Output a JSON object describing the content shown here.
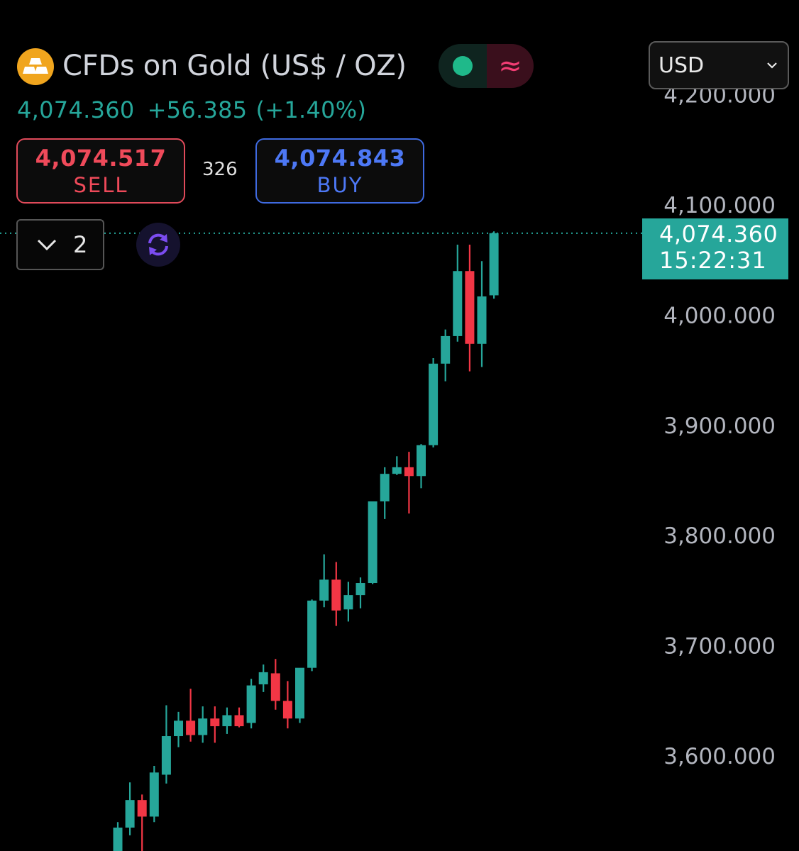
{
  "header": {
    "title": "CFDs on Gold (US$ / OZ)",
    "status_icon": "live-dot-icon",
    "wave_symbol": "≈"
  },
  "quote": {
    "last": "4,074.360",
    "change": "+56.385",
    "change_pct": "(+1.40%)"
  },
  "trade": {
    "sell_price": "4,074.517",
    "sell_label": "SELL",
    "spread": "326",
    "buy_price": "4,074.843",
    "buy_label": "BUY"
  },
  "controls": {
    "collapse_count": "2",
    "currency": "USD"
  },
  "last_price_label": {
    "price": "4,074.360",
    "countdown": "15:22:31"
  },
  "colors": {
    "up": "#26a69a",
    "down": "#f23645",
    "sell": "#ef4a5a",
    "buy": "#4d78f5",
    "axis_text": "#b2b5be"
  },
  "chart_data": {
    "type": "candlestick",
    "y_ticks": [
      "3,600.000",
      "3,700.000",
      "3,800.000",
      "3,900.000",
      "4,000.000",
      "4,100.000",
      "4,200.000"
    ],
    "y_tick_values": [
      3600,
      3700,
      3800,
      3900,
      4000,
      4100,
      4200
    ],
    "ylim": [
      3515,
      4230
    ],
    "last_price": 4074.36,
    "grid": false,
    "candles": [
      {
        "o": 3508,
        "h": 3540,
        "l": 3500,
        "c": 3535
      },
      {
        "o": 3535,
        "h": 3576,
        "l": 3528,
        "c": 3560
      },
      {
        "o": 3560,
        "h": 3565,
        "l": 3505,
        "c": 3545
      },
      {
        "o": 3545,
        "h": 3591,
        "l": 3540,
        "c": 3585
      },
      {
        "o": 3583,
        "h": 3646,
        "l": 3575,
        "c": 3618
      },
      {
        "o": 3618,
        "h": 3640,
        "l": 3608,
        "c": 3632
      },
      {
        "o": 3632,
        "h": 3661,
        "l": 3613,
        "c": 3619
      },
      {
        "o": 3619,
        "h": 3645,
        "l": 3612,
        "c": 3634
      },
      {
        "o": 3634,
        "h": 3645,
        "l": 3612,
        "c": 3627
      },
      {
        "o": 3627,
        "h": 3644,
        "l": 3620,
        "c": 3637
      },
      {
        "o": 3637,
        "h": 3644,
        "l": 3626,
        "c": 3627
      },
      {
        "o": 3630,
        "h": 3670,
        "l": 3625,
        "c": 3664
      },
      {
        "o": 3665,
        "h": 3683,
        "l": 3658,
        "c": 3676
      },
      {
        "o": 3675,
        "h": 3688,
        "l": 3642,
        "c": 3650
      },
      {
        "o": 3650,
        "h": 3668,
        "l": 3625,
        "c": 3634
      },
      {
        "o": 3634,
        "h": 3679,
        "l": 3630,
        "c": 3680
      },
      {
        "o": 3680,
        "h": 3742,
        "l": 3677,
        "c": 3741
      },
      {
        "o": 3741,
        "h": 3783,
        "l": 3735,
        "c": 3760
      },
      {
        "o": 3760,
        "h": 3776,
        "l": 3718,
        "c": 3732
      },
      {
        "o": 3733,
        "h": 3758,
        "l": 3722,
        "c": 3746
      },
      {
        "o": 3746,
        "h": 3762,
        "l": 3734,
        "c": 3757
      },
      {
        "o": 3757,
        "h": 3830,
        "l": 3756,
        "c": 3831
      },
      {
        "o": 3831,
        "h": 3862,
        "l": 3815,
        "c": 3856
      },
      {
        "o": 3856,
        "h": 3872,
        "l": 3855,
        "c": 3862
      },
      {
        "o": 3862,
        "h": 3876,
        "l": 3820,
        "c": 3854
      },
      {
        "o": 3854,
        "h": 3883,
        "l": 3843,
        "c": 3882
      },
      {
        "o": 3882,
        "h": 3961,
        "l": 3880,
        "c": 3956
      },
      {
        "o": 3956,
        "h": 3987,
        "l": 3940,
        "c": 3981
      },
      {
        "o": 3981,
        "h": 4064,
        "l": 3976,
        "c": 4040
      },
      {
        "o": 4040,
        "h": 4064,
        "l": 3949,
        "c": 3974
      },
      {
        "o": 3974,
        "h": 4049,
        "l": 3953,
        "c": 4017
      },
      {
        "o": 4018,
        "h": 4076,
        "l": 4015,
        "c": 4074.36
      }
    ]
  }
}
